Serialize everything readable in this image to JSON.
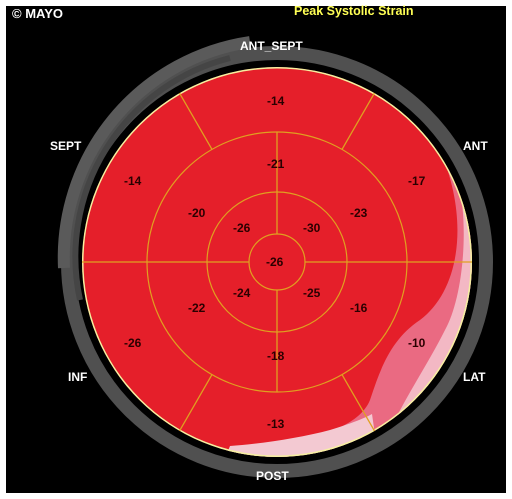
{
  "header": {
    "copyright": "© MAYO",
    "title": "Peak Systolic Strain"
  },
  "colors": {
    "background": "#000000",
    "ring": "#505050",
    "strain_high": "#e51f2a",
    "strain_low": "#ea6a82",
    "strain_lowest": "#f3b8c4",
    "spoke": "#e0a020",
    "title": "#ffff55"
  },
  "wall_labels": {
    "ant_sept": "ANT_SEPT",
    "ant": "ANT",
    "lat": "LAT",
    "post": "POST",
    "inf": "INF",
    "sept": "SEPT"
  },
  "segments": {
    "basal": {
      "ant_sept": "-14",
      "ant": "-17",
      "lat": "-10",
      "post": "-13",
      "inf": "-26",
      "sept": "-14"
    },
    "mid": {
      "ant_sept": "-21",
      "ant": "-23",
      "lat": "-16",
      "post": "-18",
      "inf": "-22",
      "sept": "-20"
    },
    "apical": {
      "ant": "-30",
      "lat": "-25",
      "inf": "-24",
      "sept": "-26"
    },
    "apex": "-26"
  }
}
